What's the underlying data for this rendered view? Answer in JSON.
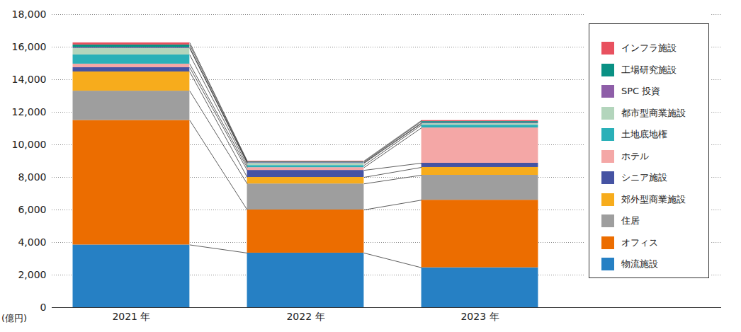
{
  "chart_data": {
    "type": "bar",
    "stacked": true,
    "legend": "upper right",
    "grid": true,
    "y_label": "(億円)",
    "categories": [
      "2021 年",
      "2022 年",
      "2023 年"
    ],
    "ylim": [
      0,
      18000
    ],
    "yticks": [
      0,
      {
        "value": 2000,
        "label": "2,000"
      },
      {
        "value": 4000,
        "label": "4,000"
      },
      {
        "value": 6000,
        "label": "6,000"
      },
      {
        "value": 8000,
        "label": "8,000"
      },
      {
        "value": 10000,
        "label": "10,000"
      },
      {
        "value": 12000,
        "label": "12,000"
      },
      {
        "value": 14000,
        "label": "14,000"
      },
      {
        "value": 16000,
        "label": "16,000"
      },
      {
        "value": 18000,
        "label": "18,000"
      }
    ],
    "series": [
      {
        "name": "物流施設",
        "color": "#2680c4",
        "values": [
          3850,
          3350,
          2450
        ]
      },
      {
        "name": "オフィス",
        "color": "#ec6d00",
        "values": [
          7650,
          2650,
          4150
        ]
      },
      {
        "name": "住居",
        "color": "#9e9e9e",
        "values": [
          1800,
          1600,
          1530
        ]
      },
      {
        "name": "郊外型商業施設",
        "color": "#f7ac1c",
        "values": [
          1180,
          400,
          480
        ]
      },
      {
        "name": "シニア施設",
        "color": "#4553a3",
        "values": [
          260,
          430,
          260
        ]
      },
      {
        "name": "ホテル",
        "color": "#f4a7a6",
        "values": [
          220,
          170,
          2170
        ]
      },
      {
        "name": "土地底地権",
        "color": "#2ab0b8",
        "values": [
          565,
          130,
          170
        ]
      },
      {
        "name": "都市型商業施設",
        "color": "#b3d5bc",
        "values": [
          390,
          130,
          90
        ]
      },
      {
        "name": "SPC 投資",
        "color": "#8e5ea8",
        "values": [
          50,
          40,
          40
        ]
      },
      {
        "name": "工場研究施設",
        "color": "#0a9184",
        "values": [
          170,
          50,
          90
        ]
      },
      {
        "name": "インフラ施設",
        "color": "#e8515f",
        "values": [
          130,
          50,
          60
        ]
      }
    ]
  }
}
